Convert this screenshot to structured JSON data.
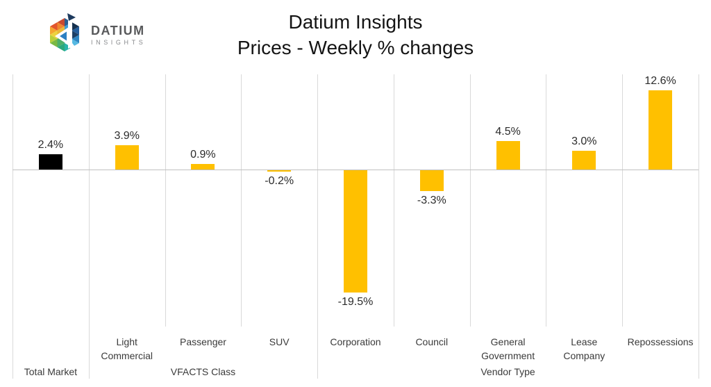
{
  "logo": {
    "name": "DATIUM",
    "subname": "INSIGHTS"
  },
  "chart_data": {
    "type": "bar",
    "title": "Datium Insights",
    "subtitle": "Prices - Weekly % changes",
    "unit": "%",
    "legend": "none",
    "grid": "vertical category separators only",
    "ylim": [
      -25,
      15
    ],
    "baseline_value": 0,
    "default_bar_color": "#FFC000",
    "highlight_bar_color": "#000000",
    "bars": [
      {
        "category": "Total Market",
        "category_lines": [],
        "value": 2.4,
        "label": "2.4%",
        "color": "#000000"
      },
      {
        "category": "Light Commercial",
        "category_lines": [
          "Light",
          "Commercial"
        ],
        "value": 3.9,
        "label": "3.9%",
        "color": "#FFC000"
      },
      {
        "category": "Passenger",
        "category_lines": [
          "Passenger"
        ],
        "value": 0.9,
        "label": "0.9%",
        "color": "#FFC000"
      },
      {
        "category": "SUV",
        "category_lines": [
          "SUV"
        ],
        "value": -0.2,
        "label": "-0.2%",
        "color": "#FFC000"
      },
      {
        "category": "Corporation",
        "category_lines": [
          "Corporation"
        ],
        "value": -19.5,
        "label": "-19.5%",
        "color": "#FFC000"
      },
      {
        "category": "Council",
        "category_lines": [
          "Council"
        ],
        "value": -3.3,
        "label": "-3.3%",
        "color": "#FFC000"
      },
      {
        "category": "General Government",
        "category_lines": [
          "General",
          "Government"
        ],
        "value": 4.5,
        "label": "4.5%",
        "color": "#FFC000"
      },
      {
        "category": "Lease Company",
        "category_lines": [
          "Lease",
          "Company"
        ],
        "value": 3.0,
        "label": "3.0%",
        "color": "#FFC000"
      },
      {
        "category": "Repossessions",
        "category_lines": [
          "Repossessions"
        ],
        "value": 12.6,
        "label": "12.6%",
        "color": "#FFC000"
      }
    ],
    "groups": [
      {
        "label": "Total Market",
        "start": 0,
        "span": 1
      },
      {
        "label": "VFACTS Class",
        "start": 1,
        "span": 3
      },
      {
        "label": "Vendor Type",
        "start": 4,
        "span": 5
      }
    ]
  }
}
